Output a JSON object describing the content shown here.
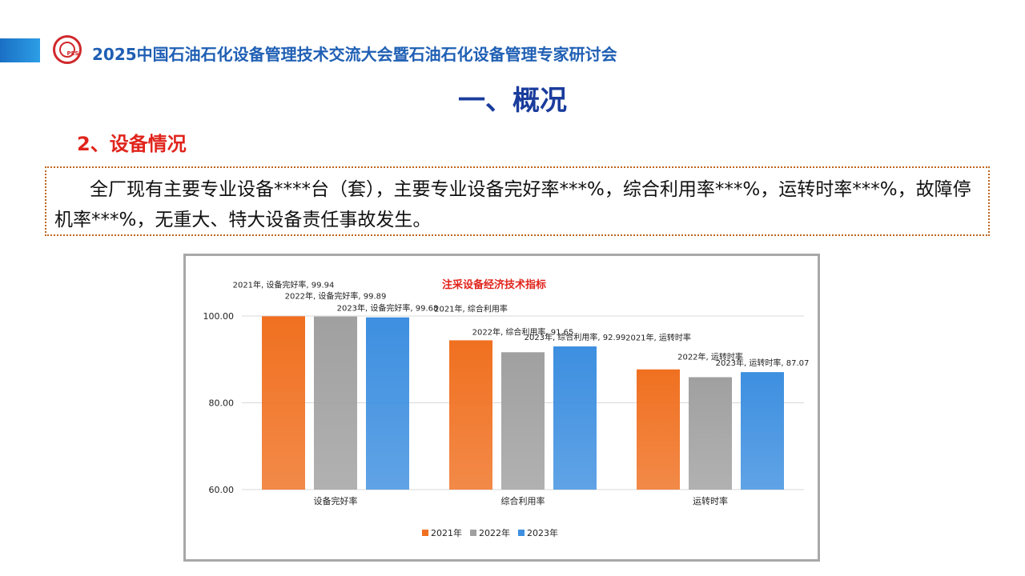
{
  "header": {
    "logo_text": "PES",
    "conference_title": "2025中国石油石化设备管理技术交流大会暨石油石化设备管理专家研讨会"
  },
  "section": {
    "title": "一、概况",
    "subtitle": "2、设备情况"
  },
  "description": "全厂现有主要专业设备****台（套），主要专业设备完好率***%，综合利用率***%，运转时率***%，故障停机率***%，无重大、特大设备责任事故发生。",
  "chart_data": {
    "type": "bar",
    "title": "注采设备经济技术指标",
    "categories": [
      "设备完好率",
      "综合利用率",
      "运转时率"
    ],
    "series": [
      {
        "name": "2021年",
        "values": [
          99.94,
          94.4,
          87.7
        ],
        "color": "#f07020"
      },
      {
        "name": "2022年",
        "values": [
          99.89,
          91.65,
          85.9
        ],
        "color": "#a0a0a0"
      },
      {
        "name": "2023年",
        "values": [
          99.68,
          92.99,
          87.07
        ],
        "color": "#3d8fe0"
      }
    ],
    "y_ticks": [
      "60.00",
      "80.00",
      "100.00"
    ],
    "ylim": [
      60,
      100
    ],
    "legend": [
      "2021年",
      "2022年",
      "2023年"
    ],
    "legend_position": "bottom",
    "data_labels": [
      [
        "2021年, 设备完好率, 99.94",
        "2022年, 设备完好率, 99.89",
        "2023年, 设备完好率, 99.68"
      ],
      [
        "2021年, 综合利用率",
        "2022年, 综合利用率, 91.65",
        "2023年, 综合利用率, 92.99"
      ],
      [
        "2021年, 运转时率",
        "2022年, 运转时率",
        "2023年, 运转时率, 87.07"
      ]
    ]
  }
}
